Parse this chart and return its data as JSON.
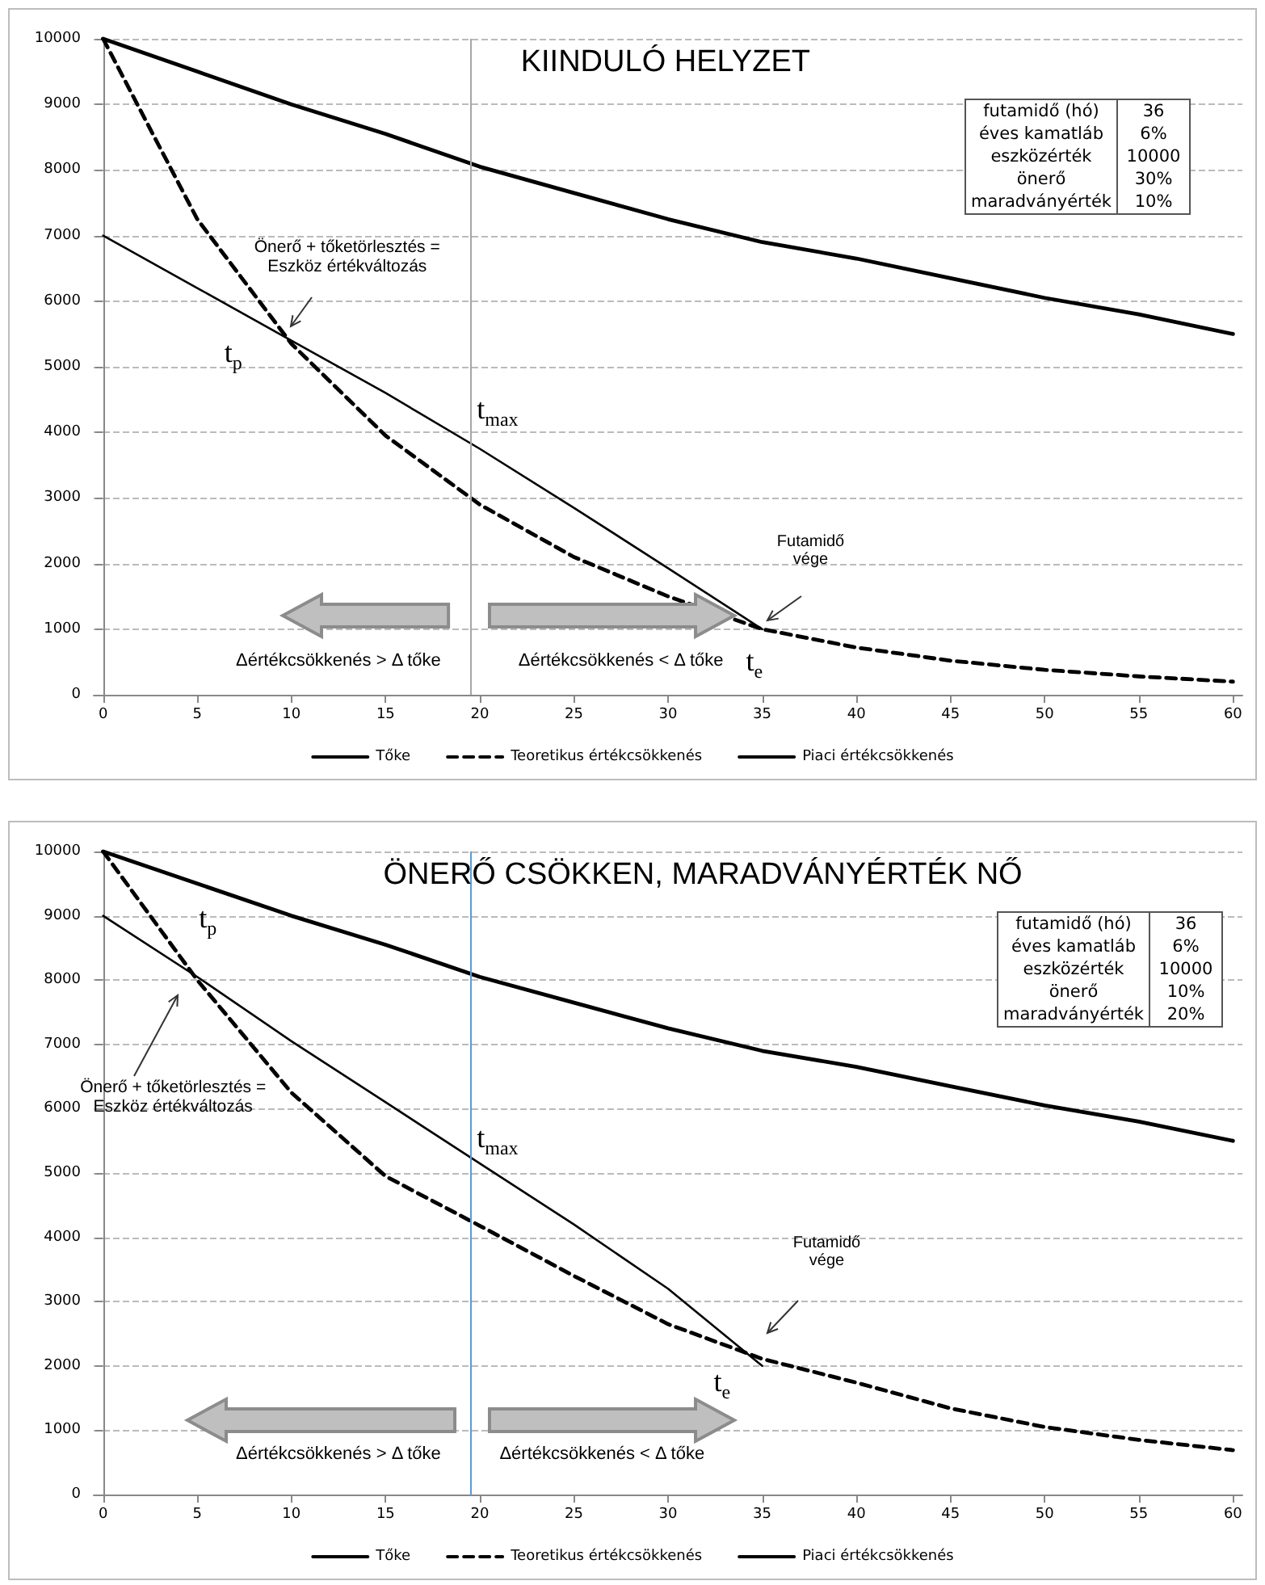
{
  "chart_data": [
    {
      "type": "line",
      "title": "KIINDULÓ HELYZET",
      "x": [
        0,
        5,
        10,
        15,
        20,
        25,
        30,
        35,
        40,
        45,
        50,
        55,
        60
      ],
      "series": [
        {
          "name": "Tőke",
          "color": "#000000",
          "line_style": "solid",
          "x": [
            0,
            5,
            10,
            15,
            20,
            25,
            30,
            35
          ],
          "values": [
            7000,
            6200,
            5400,
            4600,
            3750,
            2850,
            1930,
            1000
          ]
        },
        {
          "name": "Teoretikus értékcsökkenés",
          "color": "#000000",
          "line_style": "dashed",
          "values": [
            10000,
            7250,
            5350,
            3950,
            2900,
            2100,
            1500,
            1000,
            720,
            520,
            380,
            280,
            200
          ]
        },
        {
          "name": "Piaci értékcsökkenés",
          "color": "#000000",
          "line_style": "solid",
          "values": [
            10000,
            9500,
            9000,
            8550,
            8050,
            7650,
            7250,
            6900,
            6650,
            6350,
            6050,
            5800,
            5500
          ]
        }
      ],
      "xlim": [
        -0.5,
        60.5
      ],
      "xticks": [
        0,
        5,
        10,
        15,
        20,
        25,
        30,
        35,
        40,
        45,
        50,
        55,
        60
      ],
      "ylim": [
        0,
        10000
      ],
      "yticks": [
        0,
        1000,
        2000,
        3000,
        4000,
        5000,
        6000,
        7000,
        8000,
        9000,
        10000
      ],
      "grid": "y",
      "legend": "bottom",
      "marker": "none",
      "ref_lines": [
        {
          "axis": "x",
          "value": 19.5,
          "label": "t$_{max}$",
          "color": "#a6a6a6"
        }
      ],
      "annotations": [
        {
          "text": "t$_{p}$",
          "x": 9.7,
          "y": 5450
        },
        {
          "text": "t$_{e}$",
          "x": 35,
          "y": 1000
        },
        "Önerő +  tőketörlesztés = Eszköz értékváltozás",
        "Futamidő vége",
        "Δértékcsökkenés > Δ tőke",
        "Δértékcsökkenés < Δ tőke",
        "futamidő (hó)",
        "36",
        "éves kamatláb",
        "6%",
        "eszközérték",
        "10000",
        "önerő",
        "30%",
        "maradványérték",
        "10%"
      ]
    },
    {
      "type": "line",
      "title": "ÖNERŐ CSÖKKEN, MARADVÁNYÉRTÉK NŐ",
      "x": [
        0,
        5,
        10,
        15,
        20,
        25,
        30,
        35,
        40,
        45,
        50,
        55,
        60
      ],
      "series": [
        {
          "name": "Tőke",
          "color": "#000000",
          "line_style": "solid",
          "x": [
            0,
            5,
            10,
            15,
            20,
            25,
            30,
            35
          ],
          "values": [
            9000,
            8050,
            7050,
            6100,
            5150,
            4200,
            3200,
            2000
          ]
        },
        {
          "name": "Teoretikus értékcsökkenés",
          "color": "#000000",
          "line_style": "dashed",
          "values": [
            10000,
            8000,
            6250,
            4950,
            4180,
            3400,
            2650,
            2110,
            1740,
            1340,
            1050,
            850,
            690
          ]
        },
        {
          "name": "Piaci értékcsökkenés",
          "color": "#000000",
          "line_style": "solid",
          "values": [
            10000,
            9500,
            9000,
            8550,
            8050,
            7650,
            7250,
            6900,
            6650,
            6350,
            6050,
            5800,
            5500
          ]
        }
      ],
      "xlim": [
        -0.5,
        60.5
      ],
      "xticks": [
        0,
        5,
        10,
        15,
        20,
        25,
        30,
        35,
        40,
        45,
        50,
        55,
        60
      ],
      "ylim": [
        0,
        10000
      ],
      "yticks": [
        0,
        1000,
        2000,
        3000,
        4000,
        5000,
        6000,
        7000,
        8000,
        9000,
        10000
      ],
      "grid": "y",
      "legend": "bottom",
      "marker": "none",
      "ref_lines": [
        {
          "axis": "x",
          "value": 19.5,
          "label": "t$_{max}$",
          "color": "#5b9bd5"
        }
      ],
      "annotations": [
        {
          "text": "t$_{p}$",
          "x": 4.4,
          "y": 8200
        },
        {
          "text": "t$_{e}$",
          "x": 35,
          "y": 2000
        },
        "Önerő +  tőketörlesztés = Eszköz értékváltozás",
        "Futamidő vége",
        "Δértékcsökkenés > Δ tőke",
        "Δértékcsökkenés < Δ tőke",
        "futamidő (hó)",
        "36",
        "éves kamatláb",
        "6%",
        "eszközérték",
        "10000",
        "önerő",
        "10%",
        "maradványérték",
        "20%"
      ]
    }
  ]
}
